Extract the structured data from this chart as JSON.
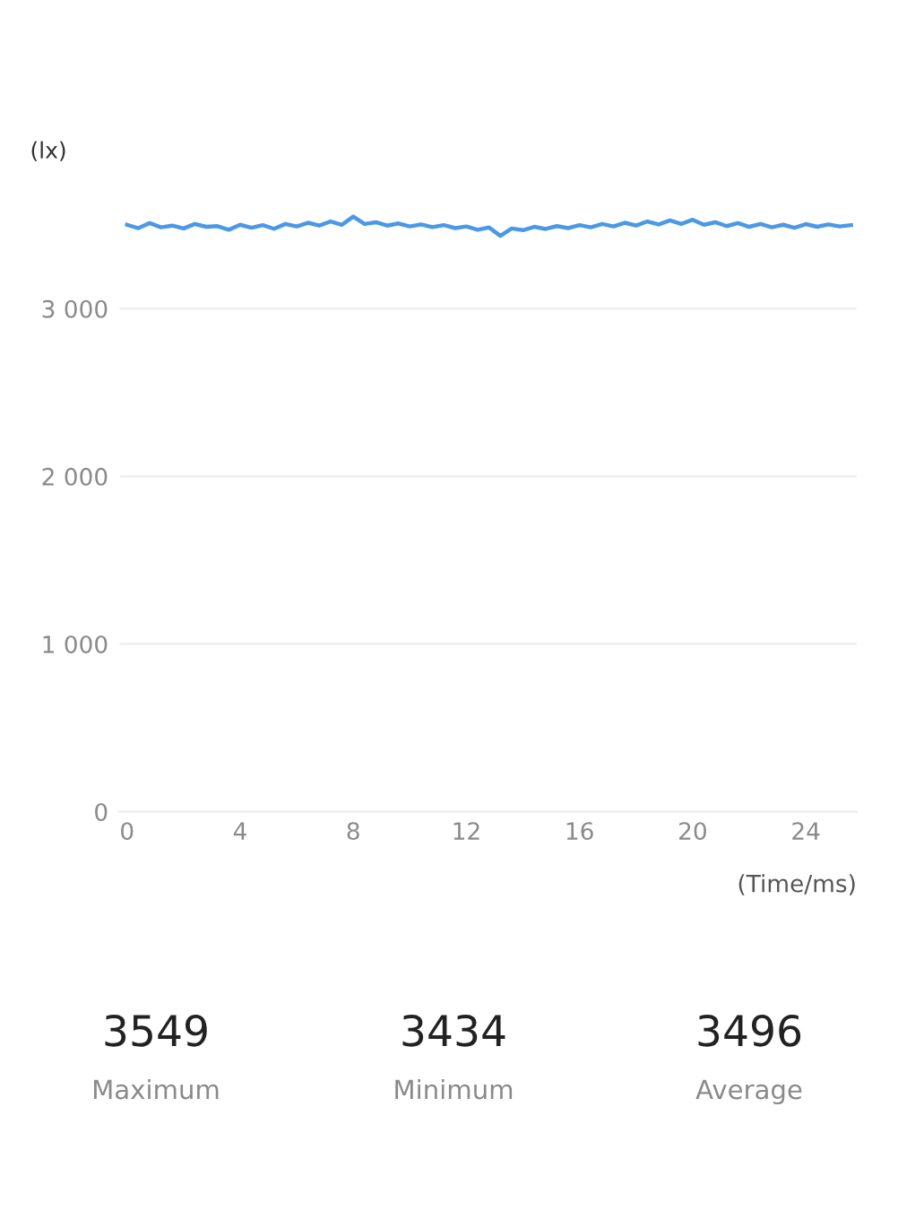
{
  "chart_data": {
    "type": "line",
    "ylabel": "(lx)",
    "xlabel": "(Time/ms)",
    "x": [
      0,
      0.4,
      0.8,
      1.2,
      1.6,
      2.0,
      2.4,
      2.8,
      3.2,
      3.6,
      4.0,
      4.4,
      4.8,
      5.2,
      5.6,
      6.0,
      6.4,
      6.8,
      7.2,
      7.6,
      8.0,
      8.4,
      8.8,
      9.2,
      9.6,
      10.0,
      10.4,
      10.8,
      11.2,
      11.6,
      12.0,
      12.4,
      12.8,
      13.2,
      13.6,
      14.0,
      14.4,
      14.8,
      15.2,
      15.6,
      16.0,
      16.4,
      16.8,
      17.2,
      17.6,
      18.0,
      18.4,
      18.8,
      19.2,
      19.6,
      20.0,
      20.4,
      20.8,
      21.2,
      21.6,
      22.0,
      22.4,
      22.8,
      23.2,
      23.6,
      24.0,
      24.4,
      24.8,
      25.2,
      25.6
    ],
    "series": [
      {
        "color": "#4a98e6",
        "values": [
          3500,
          3480,
          3510,
          3485,
          3495,
          3478,
          3505,
          3488,
          3492,
          3470,
          3500,
          3482,
          3498,
          3476,
          3505,
          3490,
          3512,
          3495,
          3520,
          3500,
          3549,
          3505,
          3515,
          3495,
          3508,
          3490,
          3502,
          3486,
          3498,
          3480,
          3490,
          3470,
          3484,
          3434,
          3478,
          3468,
          3488,
          3475,
          3492,
          3480,
          3498,
          3485,
          3505,
          3490,
          3512,
          3495,
          3520,
          3502,
          3526,
          3505,
          3530,
          3500,
          3515,
          3492,
          3510,
          3488,
          3505,
          3485,
          3500,
          3482,
          3504,
          3488,
          3502,
          3490,
          3498
        ]
      }
    ],
    "xlim": [
      -0.3,
      25.8
    ],
    "xticks": [
      0,
      4,
      8,
      12,
      16,
      20,
      24
    ],
    "ylim": [
      0,
      3720
    ],
    "yticks": [
      0,
      {
        "value": 1000,
        "label": "1 000"
      },
      {
        "value": 2000,
        "label": "2 000"
      },
      {
        "value": 3000,
        "label": "3 000"
      }
    ],
    "grid": "y",
    "marker": "none",
    "line_style": "solid",
    "legend": false,
    "annotations": [
      "3549",
      "Maximum",
      "3434",
      "Minimum",
      "3496",
      "Average"
    ]
  }
}
